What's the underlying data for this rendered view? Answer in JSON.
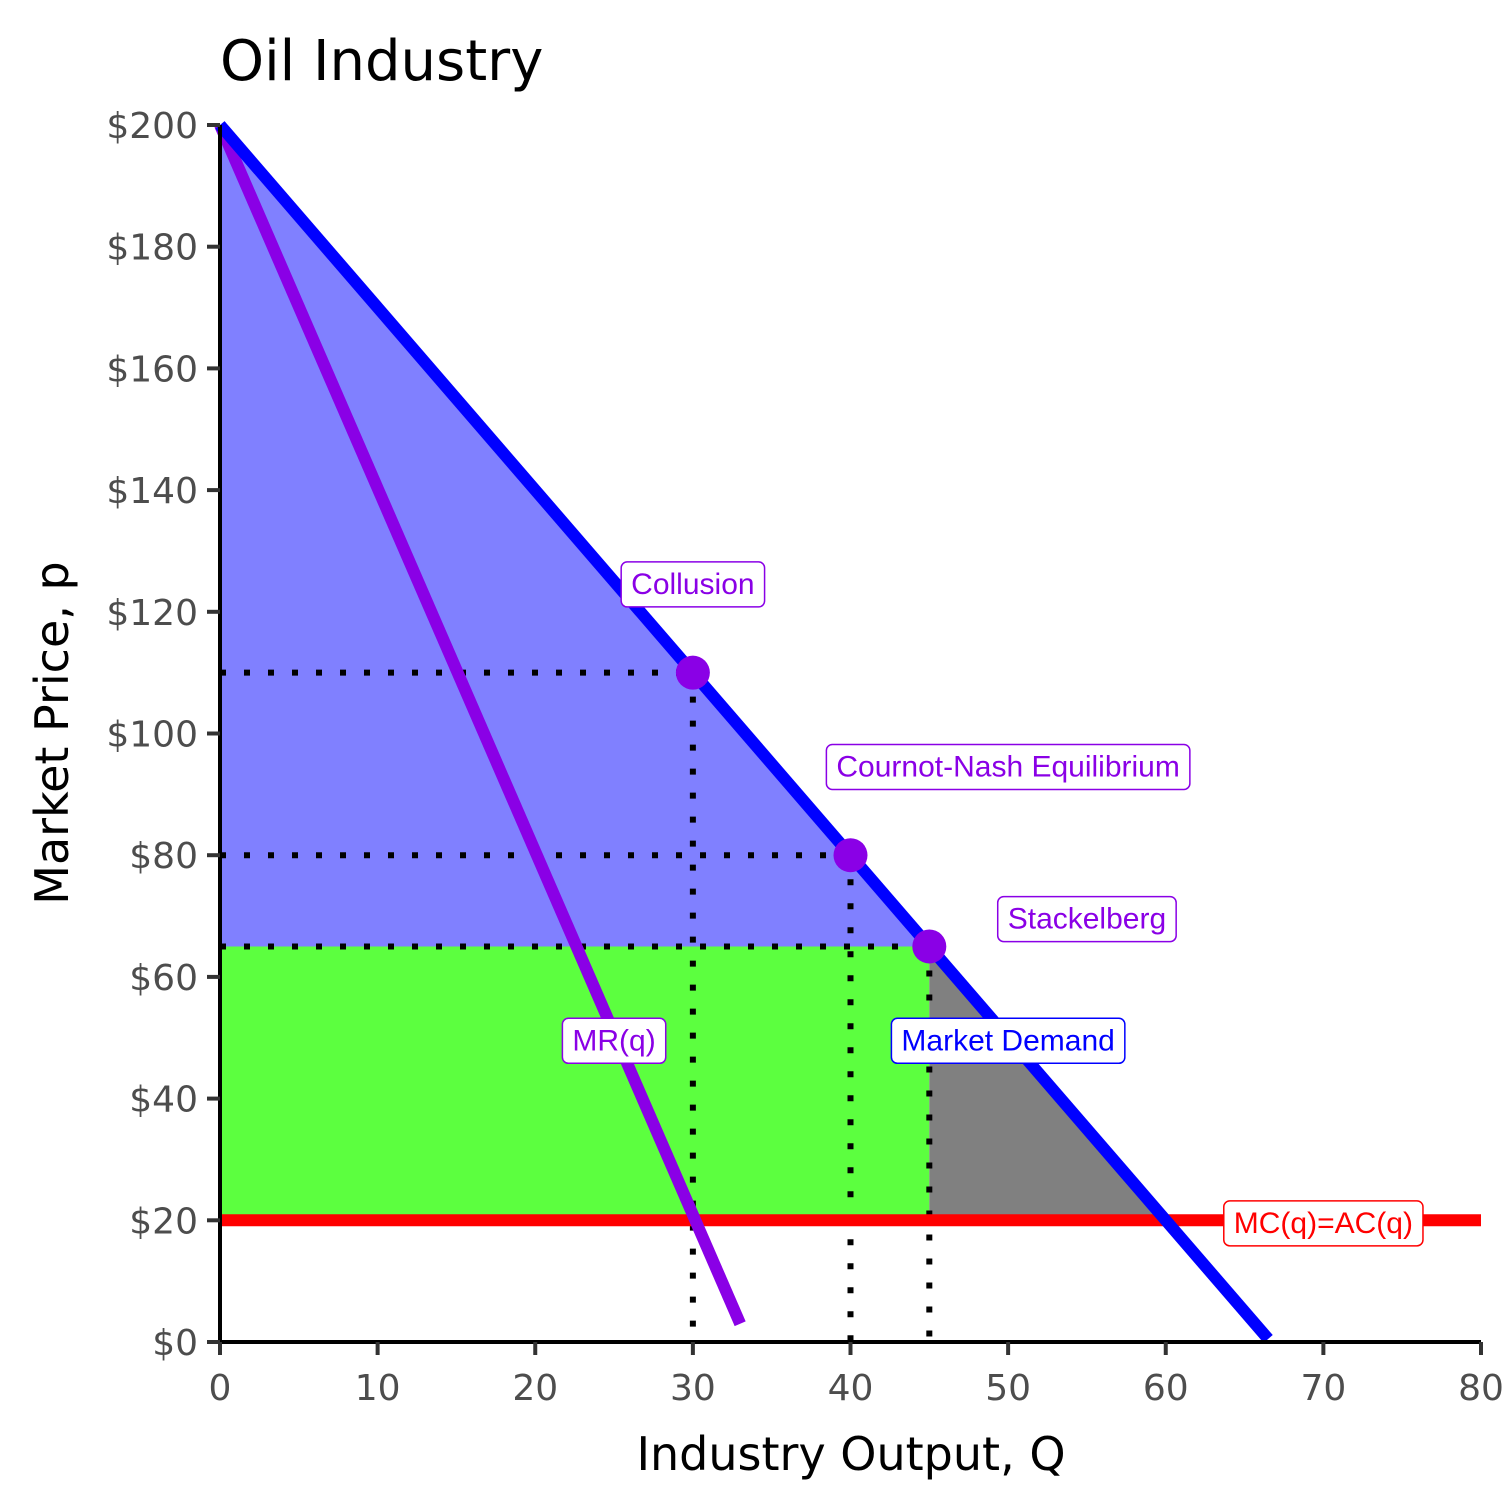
{
  "chart_data": {
    "type": "line",
    "title": "Oil Industry",
    "xlabel": "Industry Output, Q",
    "ylabel": "Market Price, p",
    "xlim": [
      0,
      80
    ],
    "ylim": [
      0,
      200
    ],
    "x_ticks": [
      0,
      10,
      20,
      30,
      40,
      50,
      60,
      70,
      80
    ],
    "x_tick_labels": [
      "0",
      "10",
      "20",
      "30",
      "40",
      "50",
      "60",
      "70",
      "80"
    ],
    "y_ticks": [
      0,
      20,
      40,
      60,
      80,
      100,
      120,
      140,
      160,
      180,
      200
    ],
    "y_tick_labels": [
      "$0",
      "$20",
      "$40",
      "$60",
      "$80",
      "$100",
      "$120",
      "$140",
      "$160",
      "$180",
      "$200"
    ],
    "grid": false,
    "series": [
      {
        "name": "Market Demand",
        "color": "#0000ff",
        "x": [
          0,
          66.5
        ],
        "y": [
          200,
          0.5
        ]
      },
      {
        "name": "MR(q)",
        "color": "#8a00e6",
        "x": [
          0,
          33
        ],
        "y": [
          200,
          3
        ]
      },
      {
        "name": "MC(q)=AC(q)",
        "color": "#ff0000",
        "x": [
          0,
          80
        ],
        "y": [
          20,
          20
        ]
      }
    ],
    "regions": [
      {
        "name": "consumer-surplus",
        "color": "#8080ff",
        "x": [
          0,
          45,
          0
        ],
        "y": [
          200,
          65,
          65
        ]
      },
      {
        "name": "profit",
        "color": "#5cff3f",
        "x": [
          0,
          45,
          45,
          0
        ],
        "y": [
          65,
          65,
          20,
          20
        ]
      },
      {
        "name": "deadweight-loss",
        "color": "#808080",
        "x": [
          45,
          60,
          45
        ],
        "y": [
          65,
          20,
          20
        ]
      }
    ],
    "points": [
      {
        "name": "collusion",
        "x": 30,
        "y": 110,
        "color": "#8a00e6"
      },
      {
        "name": "cournot-nash",
        "x": 40,
        "y": 80,
        "color": "#8a00e6"
      },
      {
        "name": "stackelberg",
        "x": 45,
        "y": 65,
        "color": "#8a00e6"
      }
    ],
    "annotations": [
      {
        "name": "collusion-label",
        "text": "Collusion",
        "x": 30,
        "y": 124.5,
        "color": "#8a00e6"
      },
      {
        "name": "cournot-label",
        "text": "Cournot-Nash Equilibrium",
        "x": 50,
        "y": 94.5,
        "color": "#8a00e6"
      },
      {
        "name": "stackelberg-label",
        "text": "Stackelberg",
        "x": 55,
        "y": 69.5,
        "color": "#8a00e6"
      },
      {
        "name": "mr-label",
        "text": "MR(q)",
        "x": 25,
        "y": 49.5,
        "color": "#8a00e6"
      },
      {
        "name": "demand-label",
        "text": "Market Demand",
        "x": 50,
        "y": 49.5,
        "color": "#0000ff"
      },
      {
        "name": "mc-label",
        "text": "MC(q)=AC(q)",
        "x": 70,
        "y": 19.5,
        "color": "#ff0000"
      }
    ]
  }
}
